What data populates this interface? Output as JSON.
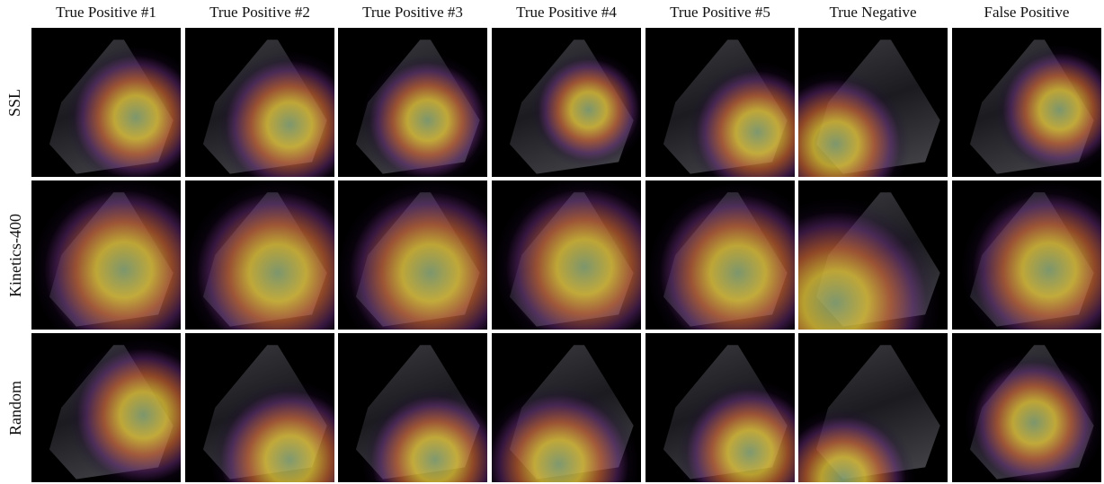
{
  "figure": {
    "column_titles": [
      "True Positive #1",
      "True Positive #2",
      "True Positive #3",
      "True Positive #4",
      "True Positive #5",
      "True Negative",
      "False Positive"
    ],
    "row_labels": [
      "SSL",
      "Kinetics-400",
      "Random"
    ]
  }
}
